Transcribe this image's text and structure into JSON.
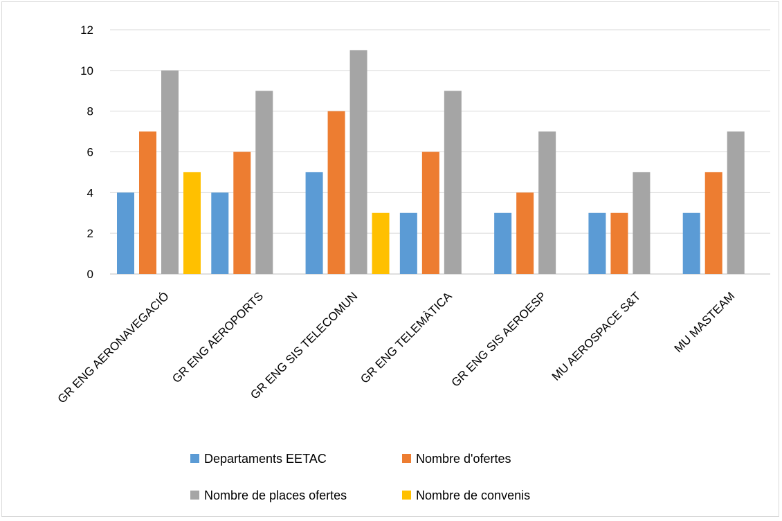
{
  "chart_data": {
    "type": "bar",
    "title": "",
    "xlabel": "",
    "ylabel": "",
    "ylim": [
      0,
      12
    ],
    "yticks": [
      0,
      2,
      4,
      6,
      8,
      10,
      12
    ],
    "grid": "horizontal",
    "legend_position": "bottom",
    "categories": [
      "GR ENG AERONAVEGACIÓ",
      "GR ENG AEROPORTS",
      "GR ENG SIS TELECOMUN",
      "GR ENG TELEMÀTICA",
      "GR ENG SIS AEROESP",
      "MU AEROSPACE S&T",
      "MU MASTEAM"
    ],
    "series": [
      {
        "name": "Departaments EETAC",
        "color": "#5b9bd5",
        "values": [
          4,
          4,
          5,
          3,
          3,
          3,
          3
        ]
      },
      {
        "name": "Nombre d'ofertes",
        "color": "#ed7d31",
        "values": [
          7,
          6,
          8,
          6,
          4,
          3,
          5
        ]
      },
      {
        "name": "Nombre de places ofertes",
        "color": "#a5a5a5",
        "values": [
          10,
          9,
          11,
          9,
          7,
          5,
          7
        ]
      },
      {
        "name": "Nombre de convenis",
        "color": "#ffc000",
        "values": [
          5,
          null,
          3,
          null,
          null,
          null,
          null
        ]
      }
    ]
  }
}
